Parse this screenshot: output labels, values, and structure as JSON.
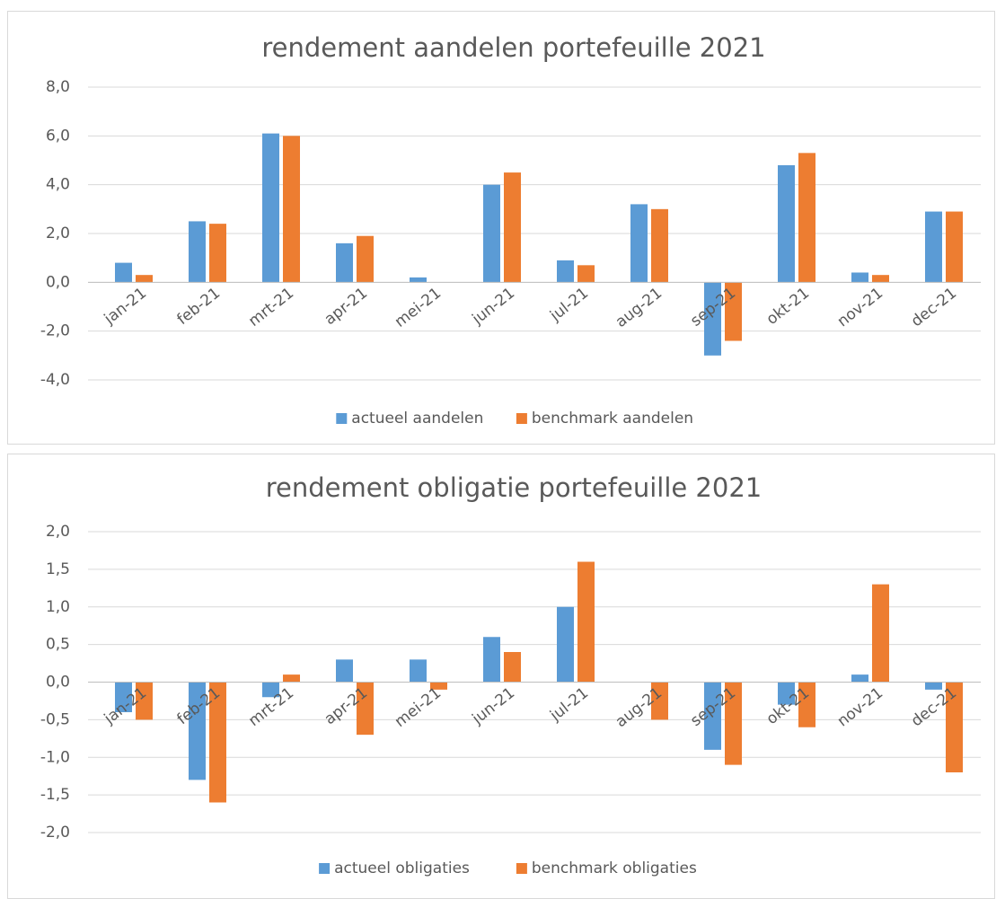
{
  "chart_data": [
    {
      "type": "bar",
      "title": "rendement aandelen portefeuille 2021",
      "categories": [
        "jan-21",
        "feb-21",
        "mrt-21",
        "apr-21",
        "mei-21",
        "jun-21",
        "jul-21",
        "aug-21",
        "sep-21",
        "okt-21",
        "nov-21",
        "dec-21"
      ],
      "series": [
        {
          "name": "actueel aandelen",
          "color": "#5b9bd5",
          "values": [
            0.8,
            2.5,
            6.1,
            1.6,
            0.2,
            4.0,
            0.9,
            3.2,
            -3.0,
            4.8,
            0.4,
            2.9
          ]
        },
        {
          "name": "benchmark aandelen",
          "color": "#ed7d31",
          "values": [
            0.3,
            2.4,
            6.0,
            1.9,
            0.0,
            4.5,
            0.7,
            3.0,
            -2.4,
            5.3,
            0.3,
            2.9
          ]
        }
      ],
      "ylim": [
        -4,
        8
      ],
      "yticks": [
        {
          "value": -4,
          "label": "-4,0"
        },
        {
          "value": -2,
          "label": "-2,0"
        },
        {
          "value": 0,
          "label": "0,0"
        },
        {
          "value": 2,
          "label": "2,0"
        },
        {
          "value": 4,
          "label": "4,0"
        },
        {
          "value": 6,
          "label": "6,0"
        },
        {
          "value": 8,
          "label": "8,0"
        }
      ],
      "grid": true,
      "legend": "bottom"
    },
    {
      "type": "bar",
      "title": "rendement obligatie portefeuille 2021",
      "categories": [
        "jan-21",
        "feb-21",
        "mrt-21",
        "apr-21",
        "mei-21",
        "jun-21",
        "jul-21",
        "aug-21",
        "sep-21",
        "okt-21",
        "nov-21",
        "dec-21"
      ],
      "series": [
        {
          "name": "actueel obligaties",
          "color": "#5b9bd5",
          "values": [
            -0.4,
            -1.3,
            -0.2,
            0.3,
            0.3,
            0.6,
            1.0,
            0.0,
            -0.9,
            -0.3,
            0.1,
            -0.1
          ]
        },
        {
          "name": "benchmark obligaties",
          "color": "#ed7d31",
          "values": [
            -0.5,
            -1.6,
            0.1,
            -0.7,
            -0.1,
            0.4,
            1.6,
            -0.5,
            -1.1,
            -0.6,
            1.3,
            -1.2
          ]
        }
      ],
      "ylim": [
        -2,
        2
      ],
      "yticks": [
        {
          "value": -2,
          "label": "-2,0"
        },
        {
          "value": -1.5,
          "label": "-1,5"
        },
        {
          "value": -1,
          "label": "-1,0"
        },
        {
          "value": -0.5,
          "label": "-0,5"
        },
        {
          "value": 0,
          "label": "0,0"
        },
        {
          "value": 0.5,
          "label": "0,5"
        },
        {
          "value": 1,
          "label": "1,0"
        },
        {
          "value": 1.5,
          "label": "1,5"
        },
        {
          "value": 2,
          "label": "2,0"
        }
      ],
      "grid": true,
      "legend": "bottom"
    }
  ]
}
